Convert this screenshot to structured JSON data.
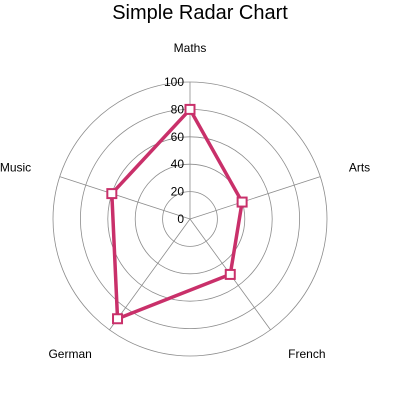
{
  "chart_data": {
    "type": "radar",
    "title": "Simple Radar Chart",
    "categories": [
      "Maths",
      "Arts",
      "French",
      "German",
      "Music"
    ],
    "series": [
      {
        "values": [
          80,
          40,
          50,
          90,
          60
        ]
      }
    ],
    "rlim": [
      0,
      100
    ],
    "ticks": [
      0,
      20,
      40,
      60,
      80,
      100
    ],
    "grid": true,
    "legend": "none",
    "colors": {
      "series": "#c9306a",
      "marker_fill": "#ffffff",
      "grid": "#8c8c8c"
    }
  }
}
